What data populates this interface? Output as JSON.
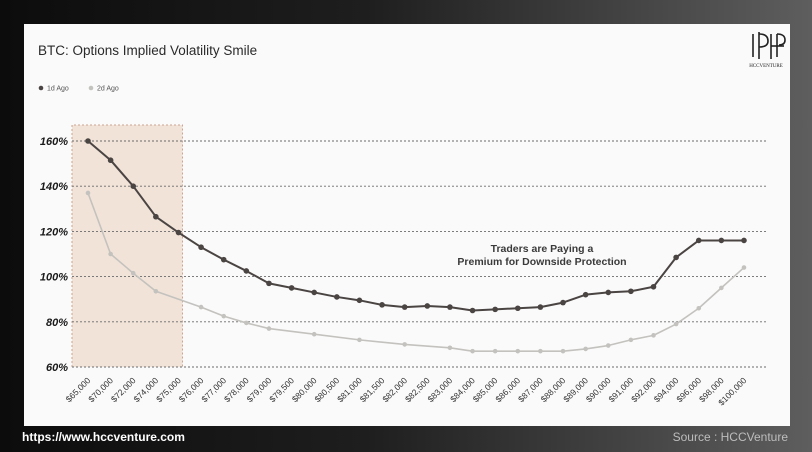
{
  "title": "BTC: Options Implied Volatility Smile",
  "logo_text": "HCCVENTURE",
  "footer": {
    "url": "https://www.hccventure.com",
    "source": "Source : HCCVenture"
  },
  "colors": {
    "series_1d": "#4a4443",
    "series_2d": "#c4c2be",
    "highlight": "#f1e3d8",
    "highlight_border": "#c9a593",
    "grid": "#6a6a6a"
  },
  "chart_data": {
    "type": "line",
    "title": "BTC: Options Implied Volatility Smile",
    "xlabel": "",
    "ylabel": "",
    "ylim": [
      60,
      160
    ],
    "yticks": [
      60,
      80,
      100,
      120,
      140,
      160
    ],
    "ytick_labels": [
      "60%",
      "80%",
      "100%",
      "120%",
      "140%",
      "160%"
    ],
    "grid": "horizontal dashed",
    "legend_position": "top-left",
    "annotation": [
      "Traders are Paying a",
      "Premium for Downside Protection"
    ],
    "highlight_range": [
      "$65,000",
      "$75,000"
    ],
    "categories": [
      "$65,000",
      "$70,000",
      "$72,000",
      "$74,000",
      "$75,000",
      "$76,000",
      "$77,000",
      "$78,000",
      "$79,000",
      "$79,500",
      "$80,000",
      "$80,500",
      "$81,000",
      "$81,500",
      "$82,000",
      "$82,500",
      "$83,000",
      "$84,000",
      "$85,000",
      "$86,000",
      "$87,000",
      "$88,000",
      "$89,000",
      "$90,000",
      "$91,000",
      "$92,000",
      "$94,000",
      "$96,000",
      "$98,000",
      "$100,000"
    ],
    "series": [
      {
        "name": "1d Ago",
        "x": [
          0,
          1,
          2,
          3,
          4,
          5,
          6,
          7,
          8,
          9,
          10,
          11,
          12,
          13,
          14,
          15,
          16,
          17,
          18,
          19,
          20,
          21,
          22,
          23,
          24,
          25,
          26,
          27,
          28,
          29
        ],
        "values": [
          160,
          151.5,
          140,
          126.5,
          119.5,
          113,
          107.5,
          102.5,
          97,
          95,
          93,
          91,
          89.5,
          87.5,
          86.5,
          87,
          86.5,
          85,
          85.5,
          86,
          86.5,
          88.5,
          92,
          93,
          93.5,
          95.5,
          108.5,
          116,
          116,
          116
        ]
      },
      {
        "name": "2d Ago",
        "x": [
          0,
          1,
          2,
          3,
          5,
          6,
          7,
          8,
          10,
          12,
          14,
          16,
          17,
          18,
          19,
          20,
          21,
          22,
          23,
          24,
          25,
          26,
          27,
          28,
          29
        ],
        "values": [
          137,
          110,
          101.5,
          93.5,
          86.5,
          82.5,
          79.5,
          77,
          74.5,
          72,
          70,
          68.5,
          67,
          67,
          67,
          67,
          67,
          68,
          69.5,
          72,
          74,
          79,
          86,
          95,
          104
        ]
      }
    ]
  }
}
